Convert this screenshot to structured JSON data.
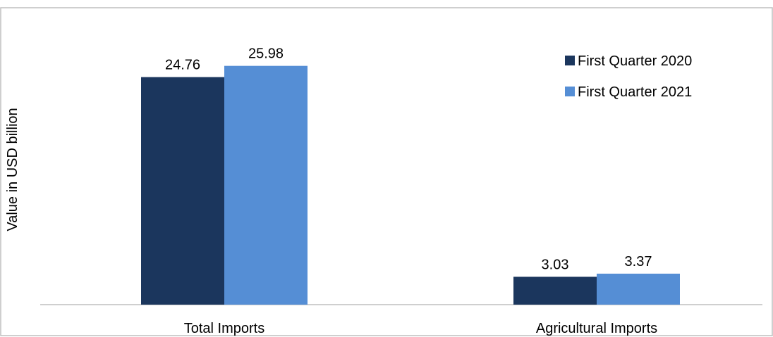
{
  "chart_data": {
    "type": "bar",
    "title": "",
    "xlabel": "",
    "ylabel": "Value in USD billion",
    "categories": [
      "Total Imports",
      "Agricultural Imports"
    ],
    "series": [
      {
        "name": "First Quarter 2020",
        "color": "#1b365d",
        "values": [
          24.76,
          3.03
        ]
      },
      {
        "name": "First Quarter 2021",
        "color": "#558ed5",
        "values": [
          25.98,
          3.37
        ]
      }
    ],
    "value_labels": [
      [
        "24.76",
        "3.03"
      ],
      [
        "25.98",
        "3.37"
      ]
    ],
    "ylim": [
      0,
      32
    ],
    "grid": false,
    "legend_position": "top-right"
  }
}
